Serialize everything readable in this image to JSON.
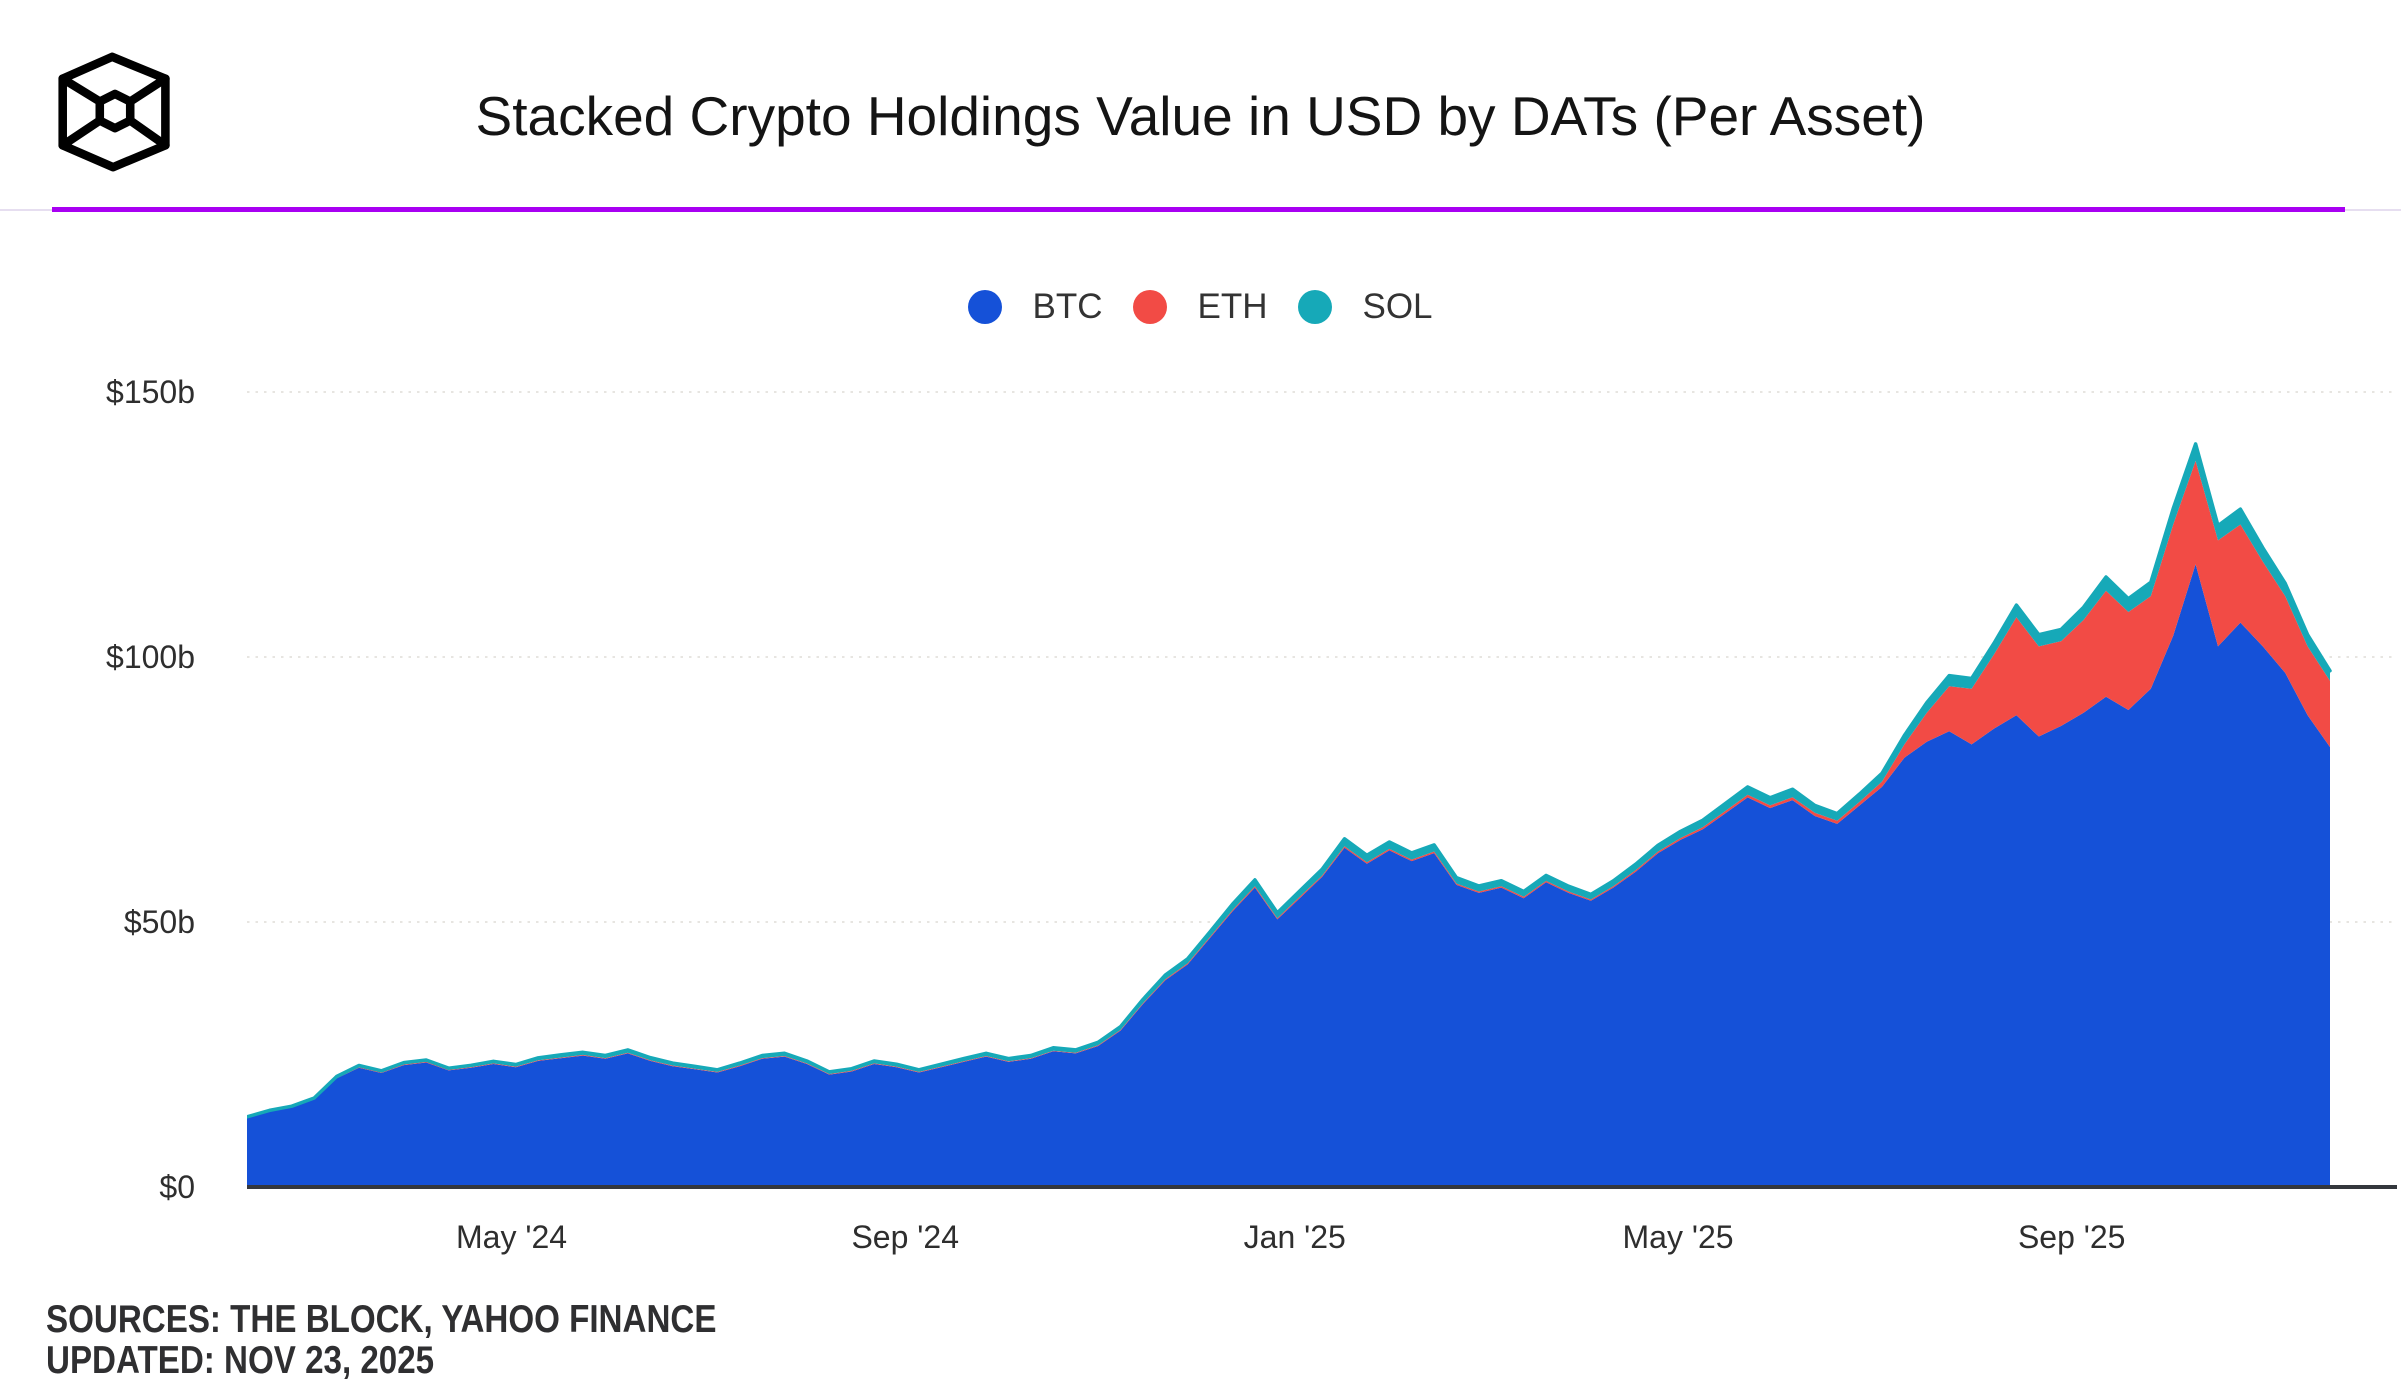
{
  "header": {
    "title": "Stacked Crypto Holdings Value in USD by DATs (Per Asset)",
    "logo": "the-block-logo",
    "divider_color": "#A800F2"
  },
  "legend": [
    {
      "label": "BTC",
      "color": "#1551D8"
    },
    {
      "label": "ETH",
      "color": "#F24B45"
    },
    {
      "label": "SOL",
      "color": "#16A9B8"
    }
  ],
  "footer": {
    "sources": "SOURCES: THE BLOCK, YAHOO FINANCE",
    "updated": "UPDATED: NOV 23, 2025"
  },
  "chart_data": {
    "type": "area",
    "stacked": true,
    "title": "Stacked Crypto Holdings Value in USD by DATs (Per Asset)",
    "unit": "USD billions",
    "ylim": [
      0,
      150
    ],
    "x_range": [
      "Feb '24",
      "Nov '25"
    ],
    "x_resolution": "weekly",
    "grid": "horizontal-dotted",
    "legend_position": "top-center",
    "yticks": [
      {
        "value": 0,
        "label": "$0"
      },
      {
        "value": 50,
        "label": "$50b"
      },
      {
        "value": 100,
        "label": "$100b"
      },
      {
        "value": 150,
        "label": "$150b"
      }
    ],
    "xticks": [
      {
        "f": 0.127,
        "label": "May '24"
      },
      {
        "f": 0.316,
        "label": "Sep '24"
      },
      {
        "f": 0.503,
        "label": "Jan '25"
      },
      {
        "f": 0.687,
        "label": "May '25"
      },
      {
        "f": 0.876,
        "label": "Sep '25"
      }
    ],
    "series": [
      {
        "name": "BTC",
        "color": "#1551D8",
        "values": [
          13.0,
          14.2,
          15.0,
          16.5,
          20.5,
          22.5,
          21.5,
          23.0,
          23.5,
          22.0,
          22.5,
          23.2,
          22.6,
          23.8,
          24.3,
          24.8,
          24.2,
          25.2,
          23.8,
          22.8,
          22.2,
          21.6,
          22.8,
          24.2,
          24.6,
          23.2,
          21.2,
          21.8,
          23.2,
          22.6,
          21.6,
          22.6,
          23.6,
          24.6,
          23.6,
          24.2,
          25.6,
          25.2,
          26.6,
          29.5,
          34.5,
          39.0,
          42.0,
          47.0,
          52.0,
          56.5,
          50.5,
          54.5,
          58.5,
          64.0,
          61.0,
          63.5,
          61.5,
          63.0,
          57.0,
          55.5,
          56.5,
          54.5,
          57.5,
          55.5,
          54.0,
          56.5,
          59.5,
          63.0,
          65.5,
          67.5,
          70.5,
          73.5,
          71.5,
          73.0,
          70.0,
          68.5,
          72.0,
          75.5,
          81.0,
          84.0,
          86.0,
          83.5,
          86.5,
          89.0,
          85.0,
          87.0,
          89.5,
          92.5,
          90.0,
          94.0,
          104.0,
          117.5,
          102.0,
          106.5,
          102.0,
          97.0,
          89.0,
          83.0
        ]
      },
      {
        "name": "ETH",
        "color": "#F24B45",
        "values": [
          0.1,
          0.1,
          0.1,
          0.1,
          0.1,
          0.12,
          0.12,
          0.12,
          0.12,
          0.12,
          0.12,
          0.12,
          0.12,
          0.12,
          0.12,
          0.12,
          0.12,
          0.12,
          0.12,
          0.12,
          0.12,
          0.12,
          0.12,
          0.12,
          0.12,
          0.12,
          0.12,
          0.12,
          0.12,
          0.12,
          0.12,
          0.12,
          0.12,
          0.12,
          0.12,
          0.12,
          0.12,
          0.12,
          0.15,
          0.15,
          0.18,
          0.2,
          0.2,
          0.22,
          0.25,
          0.25,
          0.22,
          0.25,
          0.25,
          0.3,
          0.28,
          0.3,
          0.28,
          0.3,
          0.25,
          0.25,
          0.25,
          0.25,
          0.25,
          0.25,
          0.25,
          0.25,
          0.3,
          0.3,
          0.35,
          0.4,
          0.45,
          0.5,
          0.5,
          0.55,
          0.6,
          0.6,
          0.7,
          1.0,
          2.5,
          5.5,
          8.5,
          10.5,
          14.0,
          18.5,
          17.0,
          16.0,
          17.5,
          20.0,
          18.5,
          17.5,
          21.0,
          19.5,
          20.0,
          18.5,
          16.0,
          14.5,
          13.0,
          12.5
        ]
      },
      {
        "name": "SOL",
        "color": "#16A9B8",
        "values": [
          0.15,
          0.15,
          0.15,
          0.2,
          0.25,
          0.3,
          0.3,
          0.35,
          0.35,
          0.3,
          0.35,
          0.4,
          0.4,
          0.45,
          0.5,
          0.5,
          0.5,
          0.55,
          0.5,
          0.45,
          0.45,
          0.4,
          0.45,
          0.5,
          0.5,
          0.45,
          0.4,
          0.4,
          0.45,
          0.45,
          0.4,
          0.45,
          0.5,
          0.5,
          0.5,
          0.5,
          0.55,
          0.55,
          0.55,
          0.6,
          0.7,
          0.8,
          0.85,
          0.95,
          1.1,
          1.2,
          1.0,
          1.1,
          1.2,
          1.4,
          1.3,
          1.3,
          1.25,
          1.25,
          1.1,
          1.05,
          1.05,
          1.0,
          1.05,
          1.0,
          0.95,
          1.0,
          1.1,
          1.2,
          1.25,
          1.3,
          1.4,
          1.5,
          1.45,
          1.5,
          1.4,
          1.35,
          1.45,
          1.55,
          1.7,
          1.9,
          2.0,
          1.95,
          2.1,
          2.3,
          2.2,
          2.2,
          2.4,
          2.6,
          2.5,
          2.6,
          3.0,
          3.2,
          2.8,
          2.9,
          2.6,
          2.4,
          2.2,
          1.9
        ]
      }
    ],
    "style": {
      "grid_color": "#E7E5E1",
      "baseline_color": "#34373D",
      "top_stroke_color": "#16A9B8",
      "top_stroke_width": 3.5
    }
  }
}
